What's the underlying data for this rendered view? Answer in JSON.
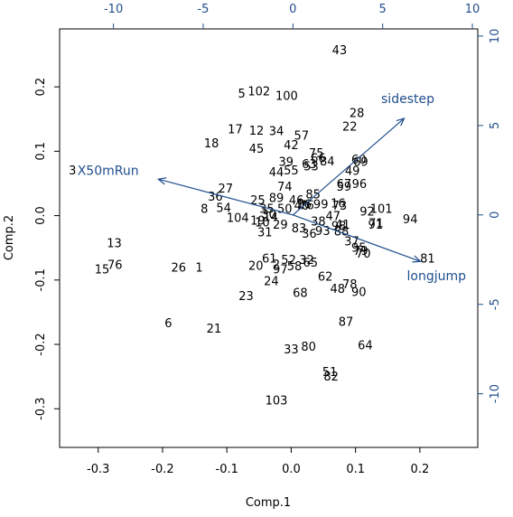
{
  "chart_data": {
    "type": "scatter",
    "subtype": "biplot",
    "title": "",
    "xlabel": "Comp.1",
    "ylabel": "Comp.2",
    "xlim": [
      -0.36,
      0.29
    ],
    "ylim": [
      -0.36,
      0.29
    ],
    "xticks": [
      -0.3,
      -0.2,
      -0.1,
      0.0,
      0.1,
      0.2
    ],
    "yticks": [
      -0.3,
      -0.2,
      -0.1,
      0.0,
      0.1,
      0.2
    ],
    "secondary_xlim": [
      -13.0,
      10.3
    ],
    "secondary_ylim": [
      -13.0,
      10.4
    ],
    "secondary_xticks": [
      -10,
      -5,
      0,
      5,
      10
    ],
    "secondary_yticks": [
      -10,
      -5,
      0,
      5,
      10
    ],
    "colors": {
      "points": "#000000",
      "arrows": "#1f4e8c",
      "frame": "#000000"
    },
    "points": [
      {
        "label": "43",
        "x": 0.075,
        "y": 0.258
      },
      {
        "label": "5",
        "x": -0.077,
        "y": 0.19
      },
      {
        "label": "102",
        "x": -0.05,
        "y": 0.194
      },
      {
        "label": "100",
        "x": -0.007,
        "y": 0.187
      },
      {
        "label": "28",
        "x": 0.102,
        "y": 0.16
      },
      {
        "label": "22",
        "x": 0.091,
        "y": 0.139
      },
      {
        "label": "17",
        "x": -0.087,
        "y": 0.135
      },
      {
        "label": "12",
        "x": -0.054,
        "y": 0.133
      },
      {
        "label": "34",
        "x": -0.023,
        "y": 0.132
      },
      {
        "label": "57",
        "x": 0.016,
        "y": 0.125
      },
      {
        "label": "18",
        "x": -0.124,
        "y": 0.113
      },
      {
        "label": "45",
        "x": -0.054,
        "y": 0.105
      },
      {
        "label": "42",
        "x": 0.0,
        "y": 0.11
      },
      {
        "label": "75",
        "x": 0.039,
        "y": 0.098
      },
      {
        "label": "66",
        "x": 0.042,
        "y": 0.09
      },
      {
        "label": "84",
        "x": 0.056,
        "y": 0.085
      },
      {
        "label": "60",
        "x": 0.105,
        "y": 0.088
      },
      {
        "label": "69",
        "x": 0.108,
        "y": 0.084
      },
      {
        "label": "39",
        "x": -0.008,
        "y": 0.084
      },
      {
        "label": "53",
        "x": 0.031,
        "y": 0.077
      },
      {
        "label": "63",
        "x": 0.028,
        "y": 0.081
      },
      {
        "label": "44",
        "x": -0.023,
        "y": 0.068
      },
      {
        "label": "55",
        "x": 0.0,
        "y": 0.071
      },
      {
        "label": "49",
        "x": 0.095,
        "y": 0.07
      },
      {
        "label": "67",
        "x": 0.082,
        "y": 0.05
      },
      {
        "label": "59",
        "x": 0.082,
        "y": 0.046
      },
      {
        "label": "96",
        "x": 0.106,
        "y": 0.05
      },
      {
        "label": "3",
        "x": -0.34,
        "y": 0.071
      },
      {
        "label": "74",
        "x": -0.01,
        "y": 0.046
      },
      {
        "label": "85",
        "x": 0.034,
        "y": 0.034
      },
      {
        "label": "27",
        "x": -0.102,
        "y": 0.043
      },
      {
        "label": "36",
        "x": -0.118,
        "y": 0.03
      },
      {
        "label": "25",
        "x": -0.052,
        "y": 0.025
      },
      {
        "label": "89",
        "x": -0.023,
        "y": 0.028
      },
      {
        "label": "46",
        "x": 0.008,
        "y": 0.025
      },
      {
        "label": "16",
        "x": 0.02,
        "y": 0.018
      },
      {
        "label": "99",
        "x": 0.046,
        "y": 0.018
      },
      {
        "label": "76",
        "x": 0.024,
        "y": 0.017
      },
      {
        "label": "16",
        "x": 0.073,
        "y": 0.02
      },
      {
        "label": "73",
        "x": 0.075,
        "y": 0.016
      },
      {
        "label": "8",
        "x": -0.135,
        "y": 0.011
      },
      {
        "label": "54",
        "x": -0.105,
        "y": 0.013
      },
      {
        "label": "35",
        "x": -0.038,
        "y": 0.011
      },
      {
        "label": "50",
        "x": -0.01,
        "y": 0.011
      },
      {
        "label": "40",
        "x": 0.016,
        "y": 0.016
      },
      {
        "label": "92",
        "x": 0.118,
        "y": 0.007
      },
      {
        "label": "101",
        "x": 0.14,
        "y": 0.011
      },
      {
        "label": "30",
        "x": -0.035,
        "y": 0.003
      },
      {
        "label": "14",
        "x": -0.032,
        "y": -0.001
      },
      {
        "label": "94",
        "x": 0.185,
        "y": -0.005
      },
      {
        "label": "104",
        "x": -0.083,
        "y": -0.003
      },
      {
        "label": "19",
        "x": -0.052,
        "y": -0.007
      },
      {
        "label": "10",
        "x": -0.045,
        "y": -0.01
      },
      {
        "label": "29",
        "x": -0.017,
        "y": -0.013
      },
      {
        "label": "38",
        "x": 0.042,
        "y": -0.008
      },
      {
        "label": "47",
        "x": 0.065,
        "y": 0.0
      },
      {
        "label": "41",
        "x": 0.08,
        "y": -0.013
      },
      {
        "label": "98",
        "x": 0.074,
        "y": -0.015
      },
      {
        "label": "71",
        "x": 0.132,
        "y": -0.011
      },
      {
        "label": "91",
        "x": 0.131,
        "y": -0.013
      },
      {
        "label": "31",
        "x": -0.041,
        "y": -0.025
      },
      {
        "label": "83",
        "x": 0.012,
        "y": -0.019
      },
      {
        "label": "36",
        "x": 0.028,
        "y": -0.027
      },
      {
        "label": "93",
        "x": 0.049,
        "y": -0.023
      },
      {
        "label": "88",
        "x": 0.078,
        "y": -0.024
      },
      {
        "label": "37",
        "x": 0.094,
        "y": -0.039
      },
      {
        "label": "13",
        "x": -0.275,
        "y": -0.042
      },
      {
        "label": "95",
        "x": 0.105,
        "y": -0.049
      },
      {
        "label": "79",
        "x": 0.108,
        "y": -0.054
      },
      {
        "label": "70",
        "x": 0.112,
        "y": -0.058
      },
      {
        "label": "81",
        "x": 0.212,
        "y": -0.066
      },
      {
        "label": "15",
        "x": -0.294,
        "y": -0.083
      },
      {
        "label": "76",
        "x": -0.274,
        "y": -0.076
      },
      {
        "label": "26",
        "x": -0.175,
        "y": -0.08
      },
      {
        "label": "1",
        "x": -0.143,
        "y": -0.08
      },
      {
        "label": "20",
        "x": -0.055,
        "y": -0.077
      },
      {
        "label": "61",
        "x": -0.034,
        "y": -0.066
      },
      {
        "label": "2",
        "x": -0.023,
        "y": -0.075
      },
      {
        "label": "97",
        "x": -0.017,
        "y": -0.083
      },
      {
        "label": "52",
        "x": -0.004,
        "y": -0.068
      },
      {
        "label": "58",
        "x": 0.005,
        "y": -0.078
      },
      {
        "label": "32",
        "x": 0.024,
        "y": -0.068
      },
      {
        "label": "65",
        "x": 0.03,
        "y": -0.072
      },
      {
        "label": "24",
        "x": -0.031,
        "y": -0.101
      },
      {
        "label": "62",
        "x": 0.053,
        "y": -0.094
      },
      {
        "label": "78",
        "x": 0.091,
        "y": -0.106
      },
      {
        "label": "48",
        "x": 0.072,
        "y": -0.113
      },
      {
        "label": "90",
        "x": 0.105,
        "y": -0.118
      },
      {
        "label": "68",
        "x": 0.014,
        "y": -0.119
      },
      {
        "label": "23",
        "x": -0.07,
        "y": -0.124
      },
      {
        "label": "87",
        "x": 0.085,
        "y": -0.164
      },
      {
        "label": "6",
        "x": -0.191,
        "y": -0.166
      },
      {
        "label": "21",
        "x": -0.12,
        "y": -0.175
      },
      {
        "label": "64",
        "x": 0.115,
        "y": -0.201
      },
      {
        "label": "80",
        "x": 0.027,
        "y": -0.203
      },
      {
        "label": "33",
        "x": 0.0,
        "y": -0.207
      },
      {
        "label": "51",
        "x": 0.06,
        "y": -0.242
      },
      {
        "label": "82",
        "x": 0.062,
        "y": -0.249
      },
      {
        "label": "103",
        "x": -0.023,
        "y": -0.286
      }
    ],
    "loadings": [
      {
        "name": "sidestep",
        "x": 6.2,
        "y": 5.4,
        "label_x": 6.4,
        "label_y": 6.5
      },
      {
        "name": "X50mRun",
        "x": -7.5,
        "y": 2.0,
        "label_x": -10.3,
        "label_y": 2.5
      },
      {
        "name": "longjump",
        "x": 7.1,
        "y": -2.6,
        "label_x": 8.0,
        "label_y": -3.4
      }
    ]
  }
}
